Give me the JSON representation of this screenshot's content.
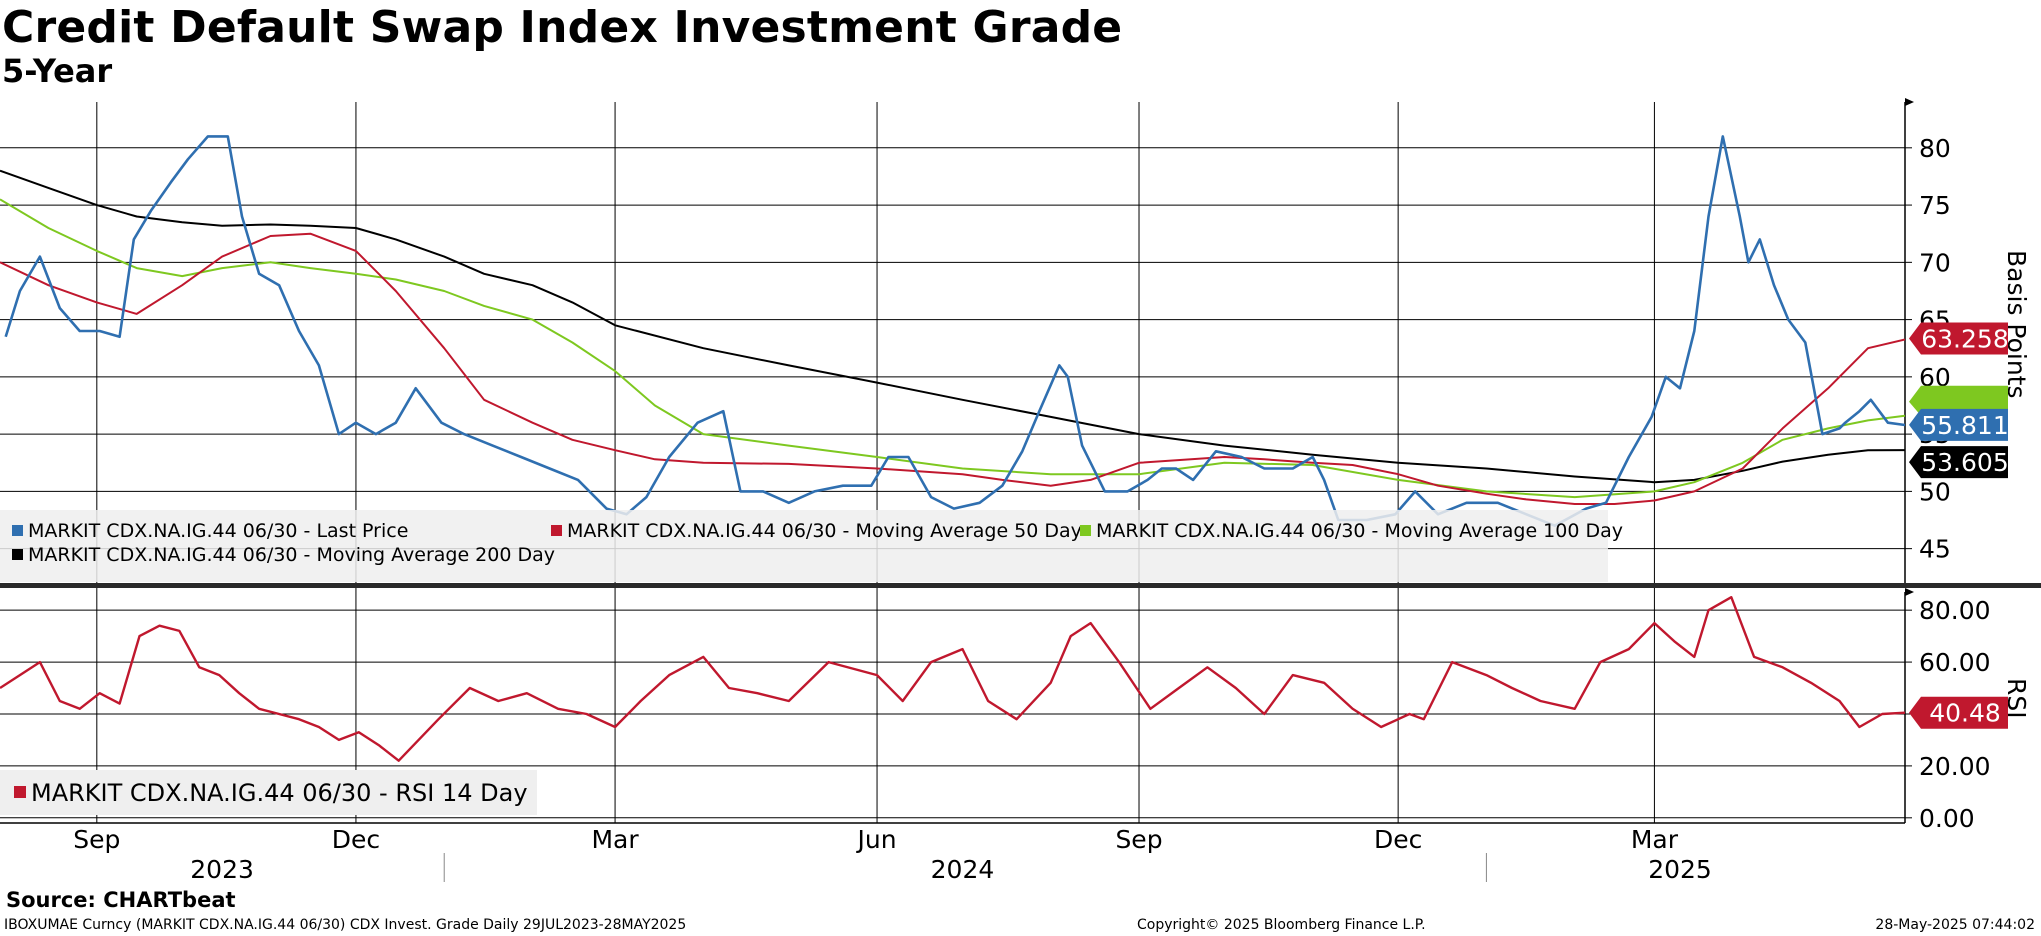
{
  "title": "Credit Default Swap Index Investment Grade",
  "subtitle": "5-Year",
  "source": "Source: CHARTbeat",
  "footer": {
    "left": "IBOXUMAE Curncy (MARKIT CDX.NA.IG.44 06/30) CDX Invest. Grade  Daily 29JUL2023-28MAY2025",
    "center": "Copyright© 2025 Bloomberg Finance L.P.",
    "right": "28-May-2025 07:44:02"
  },
  "colors": {
    "last_price": "#2f6fb0",
    "ma50": "#c0182e",
    "ma100": "#7ec820",
    "ma200": "#000000",
    "rsi": "#c0182e"
  },
  "chart_data": [
    {
      "type": "line",
      "id": "price-panel",
      "ylabel": "Basis Points",
      "ylim": [
        42,
        84
      ],
      "yticks": [
        45,
        50,
        55,
        60,
        65,
        70,
        75,
        80
      ],
      "x_range": [
        "2023-07-29",
        "2025-05-28"
      ],
      "x_ticks": [
        {
          "label": "Sep",
          "date": "2023-09-01"
        },
        {
          "label": "Dec",
          "date": "2023-12-01"
        },
        {
          "label": "Mar",
          "date": "2024-03-01"
        },
        {
          "label": "Jun",
          "date": "2024-06-01"
        },
        {
          "label": "Sep",
          "date": "2024-09-01"
        },
        {
          "label": "Dec",
          "date": "2024-12-01"
        },
        {
          "label": "Mar",
          "date": "2025-03-01"
        }
      ],
      "year_labels": [
        {
          "label": "2023",
          "date": "2023-10-15"
        },
        {
          "label": "2024",
          "date": "2024-07-01"
        },
        {
          "label": "2025",
          "date": "2025-03-10"
        }
      ],
      "year_dividers": [
        "2024-01-01",
        "2025-01-01"
      ],
      "grid": true,
      "legend_position": "bottom-left",
      "legend": [
        {
          "label": "MARKIT CDX.NA.IG.44 06/30 - Last Price",
          "series": "last_price"
        },
        {
          "label": "MARKIT CDX.NA.IG.44 06/30 - Moving Average 50 Day",
          "series": "ma50"
        },
        {
          "label": "MARKIT CDX.NA.IG.44 06/30 - Moving Average 100 Day",
          "series": "ma100"
        },
        {
          "label": "MARKIT CDX.NA.IG.44 06/30 - Moving Average 200 Day",
          "series": "ma200"
        }
      ],
      "last_value_labels": [
        {
          "series": "ma50",
          "value": "63.258"
        },
        {
          "series": "last_price",
          "value": "55.811"
        },
        {
          "series": "ma200",
          "value": "53.605"
        }
      ],
      "series": [
        {
          "key": "last_price",
          "name": "MARKIT CDX.NA.IG.44 06/30 - Last Price",
          "x": [
            "2023-07-31",
            "2023-08-05",
            "2023-08-12",
            "2023-08-19",
            "2023-08-26",
            "2023-09-02",
            "2023-09-09",
            "2023-09-14",
            "2023-09-20",
            "2023-09-27",
            "2023-10-03",
            "2023-10-10",
            "2023-10-17",
            "2023-10-22",
            "2023-10-28",
            "2023-11-04",
            "2023-11-11",
            "2023-11-18",
            "2023-11-25",
            "2023-12-01",
            "2023-12-08",
            "2023-12-15",
            "2023-12-22",
            "2023-12-31",
            "2024-01-08",
            "2024-01-18",
            "2024-01-28",
            "2024-02-07",
            "2024-02-17",
            "2024-02-27",
            "2024-03-05",
            "2024-03-12",
            "2024-03-20",
            "2024-03-30",
            "2024-04-08",
            "2024-04-14",
            "2024-04-22",
            "2024-05-01",
            "2024-05-10",
            "2024-05-20",
            "2024-05-30",
            "2024-06-05",
            "2024-06-12",
            "2024-06-20",
            "2024-06-28",
            "2024-07-07",
            "2024-07-15",
            "2024-07-22",
            "2024-07-28",
            "2024-08-04",
            "2024-08-07",
            "2024-08-12",
            "2024-08-20",
            "2024-08-28",
            "2024-09-04",
            "2024-09-09",
            "2024-09-14",
            "2024-09-20",
            "2024-09-28",
            "2024-10-07",
            "2024-10-15",
            "2024-10-25",
            "2024-11-01",
            "2024-11-05",
            "2024-11-10",
            "2024-11-20",
            "2024-11-30",
            "2024-12-07",
            "2024-12-15",
            "2024-12-25",
            "2025-01-05",
            "2025-01-15",
            "2025-01-25",
            "2025-02-05",
            "2025-02-12",
            "2025-02-20",
            "2025-02-28",
            "2025-03-05",
            "2025-03-10",
            "2025-03-15",
            "2025-03-20",
            "2025-03-25",
            "2025-03-31",
            "2025-04-03",
            "2025-04-07",
            "2025-04-12",
            "2025-04-17",
            "2025-04-23",
            "2025-04-29",
            "2025-05-05",
            "2025-05-07",
            "2025-05-12",
            "2025-05-16",
            "2025-05-22",
            "2025-05-28"
          ],
          "values": [
            63.5,
            67.5,
            70.5,
            66,
            64,
            64,
            63.5,
            72,
            74.5,
            77,
            79,
            81,
            81,
            74,
            69,
            68,
            64,
            61,
            55,
            56,
            55,
            56,
            59,
            56,
            55,
            54,
            53,
            52,
            51,
            48.5,
            48,
            49.5,
            53,
            56,
            57,
            50,
            50,
            49,
            50,
            50.5,
            50.5,
            53,
            53,
            49.5,
            48.5,
            49,
            50.5,
            53.5,
            57,
            61,
            60,
            54,
            50,
            50,
            51,
            52,
            52,
            51,
            53.5,
            53,
            52,
            52,
            53,
            51,
            47.5,
            47.5,
            48,
            50,
            48,
            49,
            49,
            48,
            47,
            48.5,
            49,
            53,
            56.5,
            60,
            59,
            64,
            74,
            81,
            74,
            70,
            72,
            68,
            65,
            63,
            55,
            55.5,
            56,
            57,
            58,
            56,
            55.8
          ]
        },
        {
          "key": "ma50",
          "name": "MARKIT CDX.NA.IG.44 06/30 - Moving Average 50 Day",
          "x": [
            "2023-07-29",
            "2023-08-15",
            "2023-09-01",
            "2023-09-15",
            "2023-10-01",
            "2023-10-15",
            "2023-11-01",
            "2023-11-15",
            "2023-12-01",
            "2023-12-15",
            "2024-01-01",
            "2024-01-15",
            "2024-02-01",
            "2024-02-15",
            "2024-03-01",
            "2024-03-15",
            "2024-04-01",
            "2024-05-01",
            "2024-06-01",
            "2024-07-01",
            "2024-07-15",
            "2024-08-01",
            "2024-08-15",
            "2024-09-01",
            "2024-10-01",
            "2024-10-15",
            "2024-11-01",
            "2024-11-15",
            "2024-12-01",
            "2024-12-15",
            "2025-01-01",
            "2025-01-15",
            "2025-02-01",
            "2025-02-15",
            "2025-03-01",
            "2025-03-15",
            "2025-04-01",
            "2025-04-15",
            "2025-05-01",
            "2025-05-15",
            "2025-05-28"
          ],
          "values": [
            70,
            68,
            66.5,
            65.5,
            68,
            70.5,
            72.3,
            72.5,
            71,
            67.5,
            62.5,
            58,
            56,
            54.5,
            53.6,
            52.8,
            52.5,
            52.4,
            52,
            51.5,
            51,
            50.5,
            51,
            52.5,
            53,
            52.8,
            52.5,
            52.3,
            51.5,
            50.5,
            49.8,
            49.3,
            48.9,
            48.9,
            49.2,
            50,
            52,
            55.5,
            59,
            62.5,
            63.258
          ]
        },
        {
          "key": "ma100",
          "name": "MARKIT CDX.NA.IG.44 06/30 - Moving Average 100 Day",
          "x": [
            "2023-07-29",
            "2023-08-15",
            "2023-09-01",
            "2023-09-15",
            "2023-10-01",
            "2023-10-15",
            "2023-11-01",
            "2023-11-15",
            "2023-12-01",
            "2023-12-15",
            "2024-01-01",
            "2024-01-15",
            "2024-02-01",
            "2024-02-15",
            "2024-03-01",
            "2024-03-15",
            "2024-04-01",
            "2024-05-01",
            "2024-06-01",
            "2024-07-01",
            "2024-08-01",
            "2024-09-01",
            "2024-10-01",
            "2024-11-01",
            "2024-12-01",
            "2025-01-01",
            "2025-02-01",
            "2025-03-01",
            "2025-03-15",
            "2025-04-01",
            "2025-04-15",
            "2025-05-01",
            "2025-05-15",
            "2025-05-28"
          ],
          "values": [
            75.5,
            73,
            71,
            69.5,
            68.8,
            69.5,
            70,
            69.5,
            69,
            68.5,
            67.5,
            66.2,
            65,
            63,
            60.5,
            57.5,
            55,
            54,
            53,
            52,
            51.5,
            51.5,
            52.5,
            52.3,
            51,
            50,
            49.5,
            50,
            50.8,
            52.5,
            54.5,
            55.5,
            56.2,
            56.6
          ]
        },
        {
          "key": "ma200",
          "name": "MARKIT CDX.NA.IG.44 06/30 - Moving Average 200 Day",
          "x": [
            "2023-07-29",
            "2023-08-15",
            "2023-09-01",
            "2023-09-15",
            "2023-10-01",
            "2023-10-15",
            "2023-11-01",
            "2023-11-15",
            "2023-12-01",
            "2023-12-15",
            "2024-01-01",
            "2024-01-15",
            "2024-02-01",
            "2024-02-15",
            "2024-03-01",
            "2024-04-01",
            "2024-05-01",
            "2024-06-01",
            "2024-07-01",
            "2024-08-01",
            "2024-09-01",
            "2024-10-01",
            "2024-11-01",
            "2024-12-01",
            "2025-01-01",
            "2025-02-01",
            "2025-03-01",
            "2025-03-15",
            "2025-04-01",
            "2025-04-15",
            "2025-05-01",
            "2025-05-15",
            "2025-05-28"
          ],
          "values": [
            78,
            76.5,
            75,
            74,
            73.5,
            73.2,
            73.3,
            73.2,
            73,
            72,
            70.5,
            69,
            68,
            66.5,
            64.5,
            62.5,
            61,
            59.5,
            58,
            56.5,
            55,
            54,
            53.2,
            52.5,
            52,
            51.3,
            50.8,
            51,
            51.8,
            52.6,
            53.2,
            53.6,
            53.605
          ]
        }
      ]
    },
    {
      "type": "line",
      "id": "rsi-panel",
      "ylabel": "RSI",
      "ylim": [
        -2,
        87
      ],
      "yticks": [
        "0.00",
        "20.00",
        "40.00",
        "60.00",
        "80.00"
      ],
      "grid": true,
      "legend_position": "bottom-left",
      "legend": [
        {
          "label": "MARKIT CDX.NA.IG.44 06/30 - RSI 14 Day",
          "series": "rsi"
        }
      ],
      "last_value_labels": [
        {
          "series": "rsi",
          "value": "40.48"
        }
      ],
      "series": [
        {
          "key": "rsi",
          "name": "MARKIT CDX.NA.IG.44 06/30 - RSI 14 Day",
          "x": [
            "2023-07-29",
            "2023-08-05",
            "2023-08-12",
            "2023-08-19",
            "2023-08-26",
            "2023-09-02",
            "2023-09-09",
            "2023-09-16",
            "2023-09-23",
            "2023-09-30",
            "2023-10-07",
            "2023-10-14",
            "2023-10-21",
            "2023-10-28",
            "2023-11-04",
            "2023-11-11",
            "2023-11-18",
            "2023-11-25",
            "2023-12-02",
            "2023-12-09",
            "2023-12-16",
            "2023-12-23",
            "2023-12-30",
            "2024-01-10",
            "2024-01-20",
            "2024-01-30",
            "2024-02-10",
            "2024-02-20",
            "2024-03-01",
            "2024-03-10",
            "2024-03-20",
            "2024-04-01",
            "2024-04-10",
            "2024-04-20",
            "2024-05-01",
            "2024-05-15",
            "2024-06-01",
            "2024-06-10",
            "2024-06-20",
            "2024-07-01",
            "2024-07-10",
            "2024-07-20",
            "2024-08-01",
            "2024-08-08",
            "2024-08-15",
            "2024-08-25",
            "2024-09-05",
            "2024-09-15",
            "2024-09-25",
            "2024-10-05",
            "2024-10-15",
            "2024-10-25",
            "2024-11-05",
            "2024-11-15",
            "2024-11-25",
            "2024-12-05",
            "2024-12-10",
            "2024-12-20",
            "2025-01-01",
            "2025-01-10",
            "2025-01-20",
            "2025-02-01",
            "2025-02-10",
            "2025-02-20",
            "2025-03-01",
            "2025-03-08",
            "2025-03-15",
            "2025-03-20",
            "2025-03-28",
            "2025-04-05",
            "2025-04-15",
            "2025-04-25",
            "2025-05-05",
            "2025-05-12",
            "2025-05-20",
            "2025-05-28"
          ],
          "values": [
            50,
            55,
            60,
            45,
            42,
            48,
            44,
            70,
            74,
            72,
            58,
            55,
            48,
            42,
            40,
            38,
            35,
            30,
            33,
            28,
            22,
            30,
            38,
            50,
            45,
            48,
            42,
            40,
            35,
            45,
            55,
            62,
            50,
            48,
            45,
            60,
            55,
            45,
            60,
            65,
            45,
            38,
            52,
            70,
            75,
            60,
            42,
            50,
            58,
            50,
            40,
            55,
            52,
            42,
            35,
            40,
            38,
            60,
            55,
            50,
            45,
            42,
            60,
            65,
            75,
            68,
            62,
            80,
            85,
            62,
            58,
            52,
            45,
            35,
            40,
            40.48
          ]
        }
      ]
    }
  ]
}
